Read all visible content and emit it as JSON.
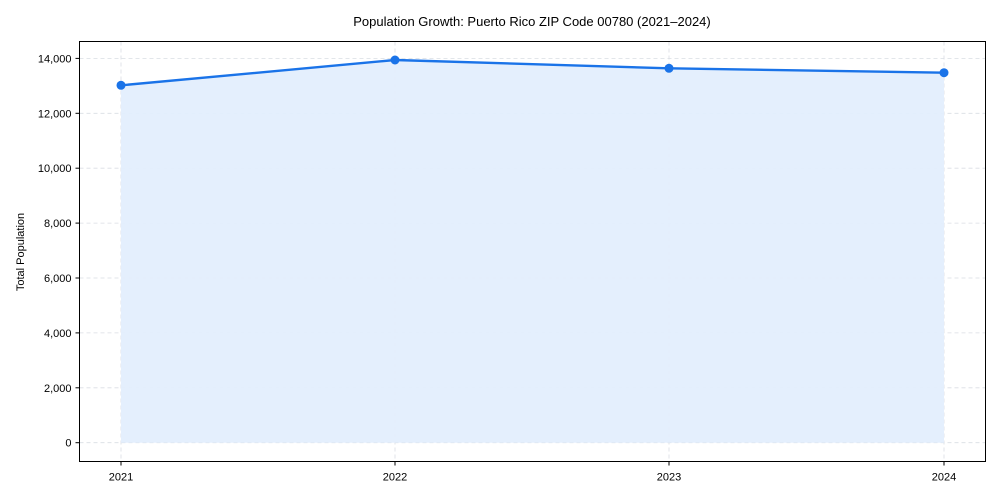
{
  "chart_data": {
    "type": "line",
    "title": "Population Growth: Puerto Rico ZIP Code 00780 (2021–2024)",
    "xlabel": "",
    "ylabel": "Total Population",
    "categories": [
      "2021",
      "2022",
      "2023",
      "2024"
    ],
    "series": [
      {
        "name": "Total Population",
        "values": [
          13020,
          13940,
          13640,
          13480
        ],
        "color": "#1a73e8",
        "fill_color": "#e3eefd",
        "marker": "circle",
        "filled_area": true
      }
    ],
    "ylim": [
      -700,
      14600
    ],
    "yticks": [
      0,
      2000,
      4000,
      6000,
      8000,
      10000,
      12000,
      14000
    ],
    "ytick_labels": [
      "0",
      "2,000",
      "4,000",
      "6,000",
      "8,000",
      "10,000",
      "12,000",
      "14,000"
    ],
    "grid": true,
    "grid_style": "dashed",
    "legend": null
  },
  "colors": {
    "line": "#1a73e8",
    "fill": "#e3eefd",
    "grid": "#d9dde3",
    "axis": "#000000"
  }
}
